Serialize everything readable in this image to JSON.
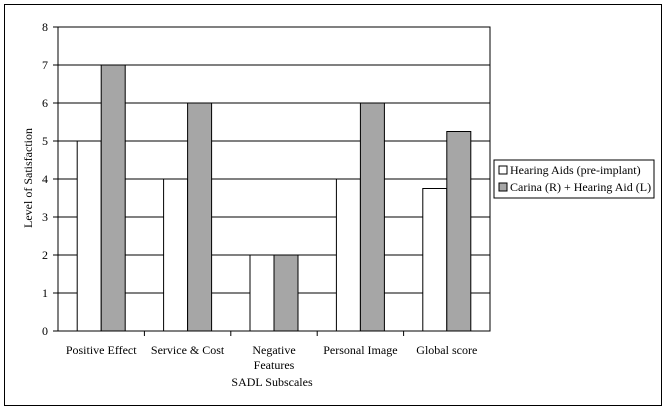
{
  "chart_data": {
    "type": "bar",
    "title": "",
    "xlabel": "SADL Subscales",
    "ylabel": "Level of Satisfaction",
    "ylim": [
      0,
      8
    ],
    "yticks": [
      0,
      1,
      2,
      3,
      4,
      5,
      6,
      7,
      8
    ],
    "grid": "horizontal",
    "legend_position": "right",
    "categories": [
      "Positive Effect",
      "Service & Cost",
      "Negative Features",
      "Personal Image",
      "Global score"
    ],
    "category_lines": [
      [
        "Positive Effect"
      ],
      [
        "Service & Cost"
      ],
      [
        "Negative",
        "Features"
      ],
      [
        "Personal Image"
      ],
      [
        "Global score"
      ]
    ],
    "series": [
      {
        "name": "Hearing Aids (pre-implant)",
        "values": [
          5,
          4,
          2,
          4,
          3.75
        ],
        "color": "#ffffff"
      },
      {
        "name": "Carina (R) + Hearing Aid (L)",
        "values": [
          7,
          6,
          2,
          6,
          5.25
        ],
        "color": "#a6a6a6"
      }
    ]
  }
}
